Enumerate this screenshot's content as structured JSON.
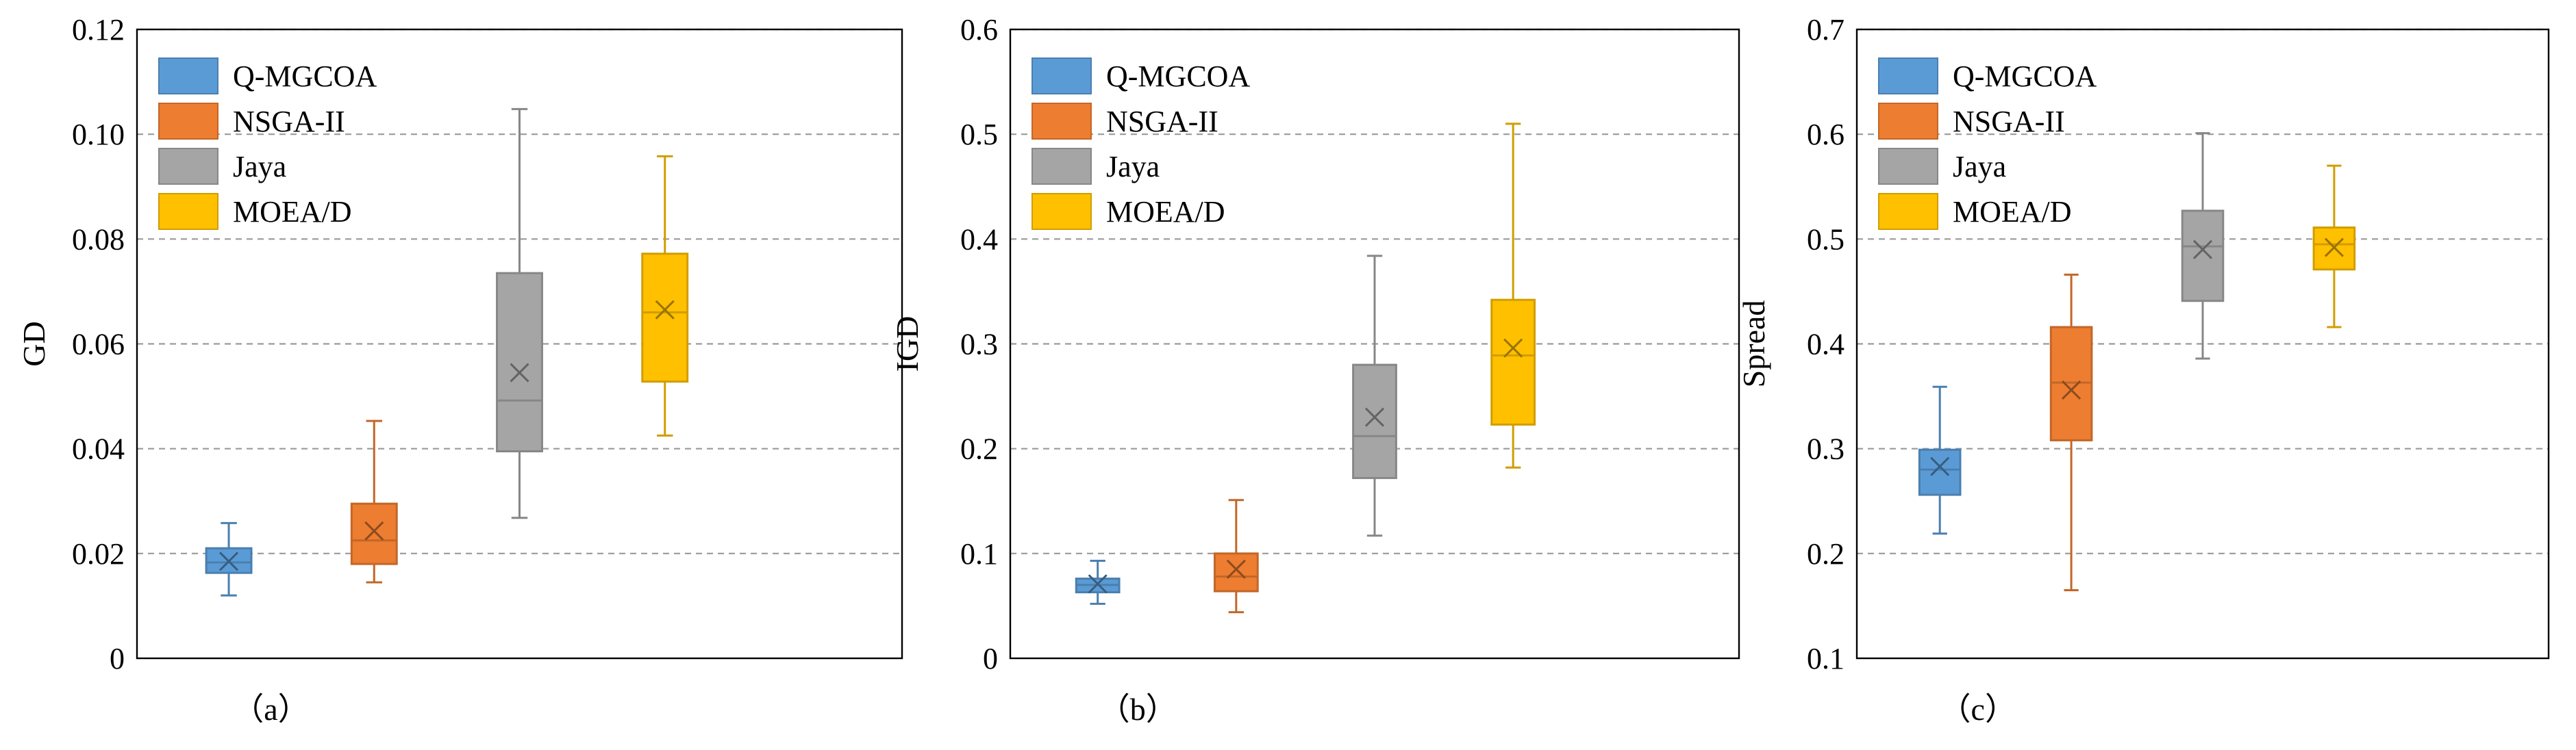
{
  "colors": {
    "Q-MGCOA": "#5B9BD5",
    "NSGA-II": "#ED7D31",
    "Jaya": "#A5A5A5",
    "MOEA/D": "#FFC000"
  },
  "chart_data": [
    {
      "type": "box",
      "panel_label": "（a）",
      "ylabel": "GD",
      "ylim": [
        0,
        0.12
      ],
      "yticks": [
        0,
        0.02,
        0.04,
        0.06,
        0.08,
        0.1,
        0.12
      ],
      "ytick_labels": [
        "0",
        "0.02",
        "0.04",
        "0.06",
        "0.08",
        "0.10",
        "0.12"
      ],
      "grid": true,
      "legend_position": "top-left",
      "series": [
        {
          "name": "Q-MGCOA",
          "min": 0.012,
          "q1": 0.0163,
          "median": 0.0183,
          "q3": 0.021,
          "max": 0.0258,
          "mean": 0.0185
        },
        {
          "name": "NSGA-II",
          "min": 0.0145,
          "q1": 0.018,
          "median": 0.0225,
          "q3": 0.0295,
          "max": 0.0453,
          "mean": 0.0243
        },
        {
          "name": "Jaya",
          "min": 0.0268,
          "q1": 0.0395,
          "median": 0.0492,
          "q3": 0.0735,
          "max": 0.1048,
          "mean": 0.0545
        },
        {
          "name": "MOEA/D",
          "min": 0.0425,
          "q1": 0.0528,
          "median": 0.066,
          "q3": 0.0772,
          "max": 0.0958,
          "mean": 0.0665
        }
      ]
    },
    {
      "type": "box",
      "panel_label": "（b）",
      "ylabel": "IGD",
      "ylim": [
        0,
        0.6
      ],
      "yticks": [
        0,
        0.1,
        0.2,
        0.3,
        0.4,
        0.5,
        0.6
      ],
      "ytick_labels": [
        "0",
        "0.1",
        "0.2",
        "0.3",
        "0.4",
        "0.5",
        "0.6"
      ],
      "grid": true,
      "legend_position": "top-left",
      "series": [
        {
          "name": "Q-MGCOA",
          "min": 0.052,
          "q1": 0.063,
          "median": 0.07,
          "q3": 0.076,
          "max": 0.093,
          "mean": 0.071
        },
        {
          "name": "NSGA-II",
          "min": 0.044,
          "q1": 0.064,
          "median": 0.078,
          "q3": 0.1,
          "max": 0.151,
          "mean": 0.085
        },
        {
          "name": "Jaya",
          "min": 0.117,
          "q1": 0.172,
          "median": 0.212,
          "q3": 0.28,
          "max": 0.384,
          "mean": 0.23
        },
        {
          "name": "MOEA/D",
          "min": 0.182,
          "q1": 0.223,
          "median": 0.289,
          "q3": 0.342,
          "max": 0.51,
          "mean": 0.296
        }
      ]
    },
    {
      "type": "box",
      "panel_label": "（c）",
      "ylabel": "Spread",
      "ylim": [
        0.1,
        0.7
      ],
      "yticks": [
        0.1,
        0.2,
        0.3,
        0.4,
        0.5,
        0.6,
        0.7
      ],
      "ytick_labels": [
        "0.1",
        "0.2",
        "0.3",
        "0.4",
        "0.5",
        "0.6",
        "0.7"
      ],
      "grid": true,
      "legend_position": "top-left",
      "series": [
        {
          "name": "Q-MGCOA",
          "min": 0.219,
          "q1": 0.256,
          "median": 0.28,
          "q3": 0.299,
          "max": 0.359,
          "mean": 0.283
        },
        {
          "name": "NSGA-II",
          "min": 0.165,
          "q1": 0.308,
          "median": 0.363,
          "q3": 0.416,
          "max": 0.466,
          "mean": 0.356
        },
        {
          "name": "Jaya",
          "min": 0.386,
          "q1": 0.441,
          "median": 0.493,
          "q3": 0.527,
          "max": 0.601,
          "mean": 0.49
        },
        {
          "name": "MOEA/D",
          "min": 0.416,
          "q1": 0.471,
          "median": 0.495,
          "q3": 0.511,
          "max": 0.57,
          "mean": 0.492
        }
      ]
    }
  ]
}
